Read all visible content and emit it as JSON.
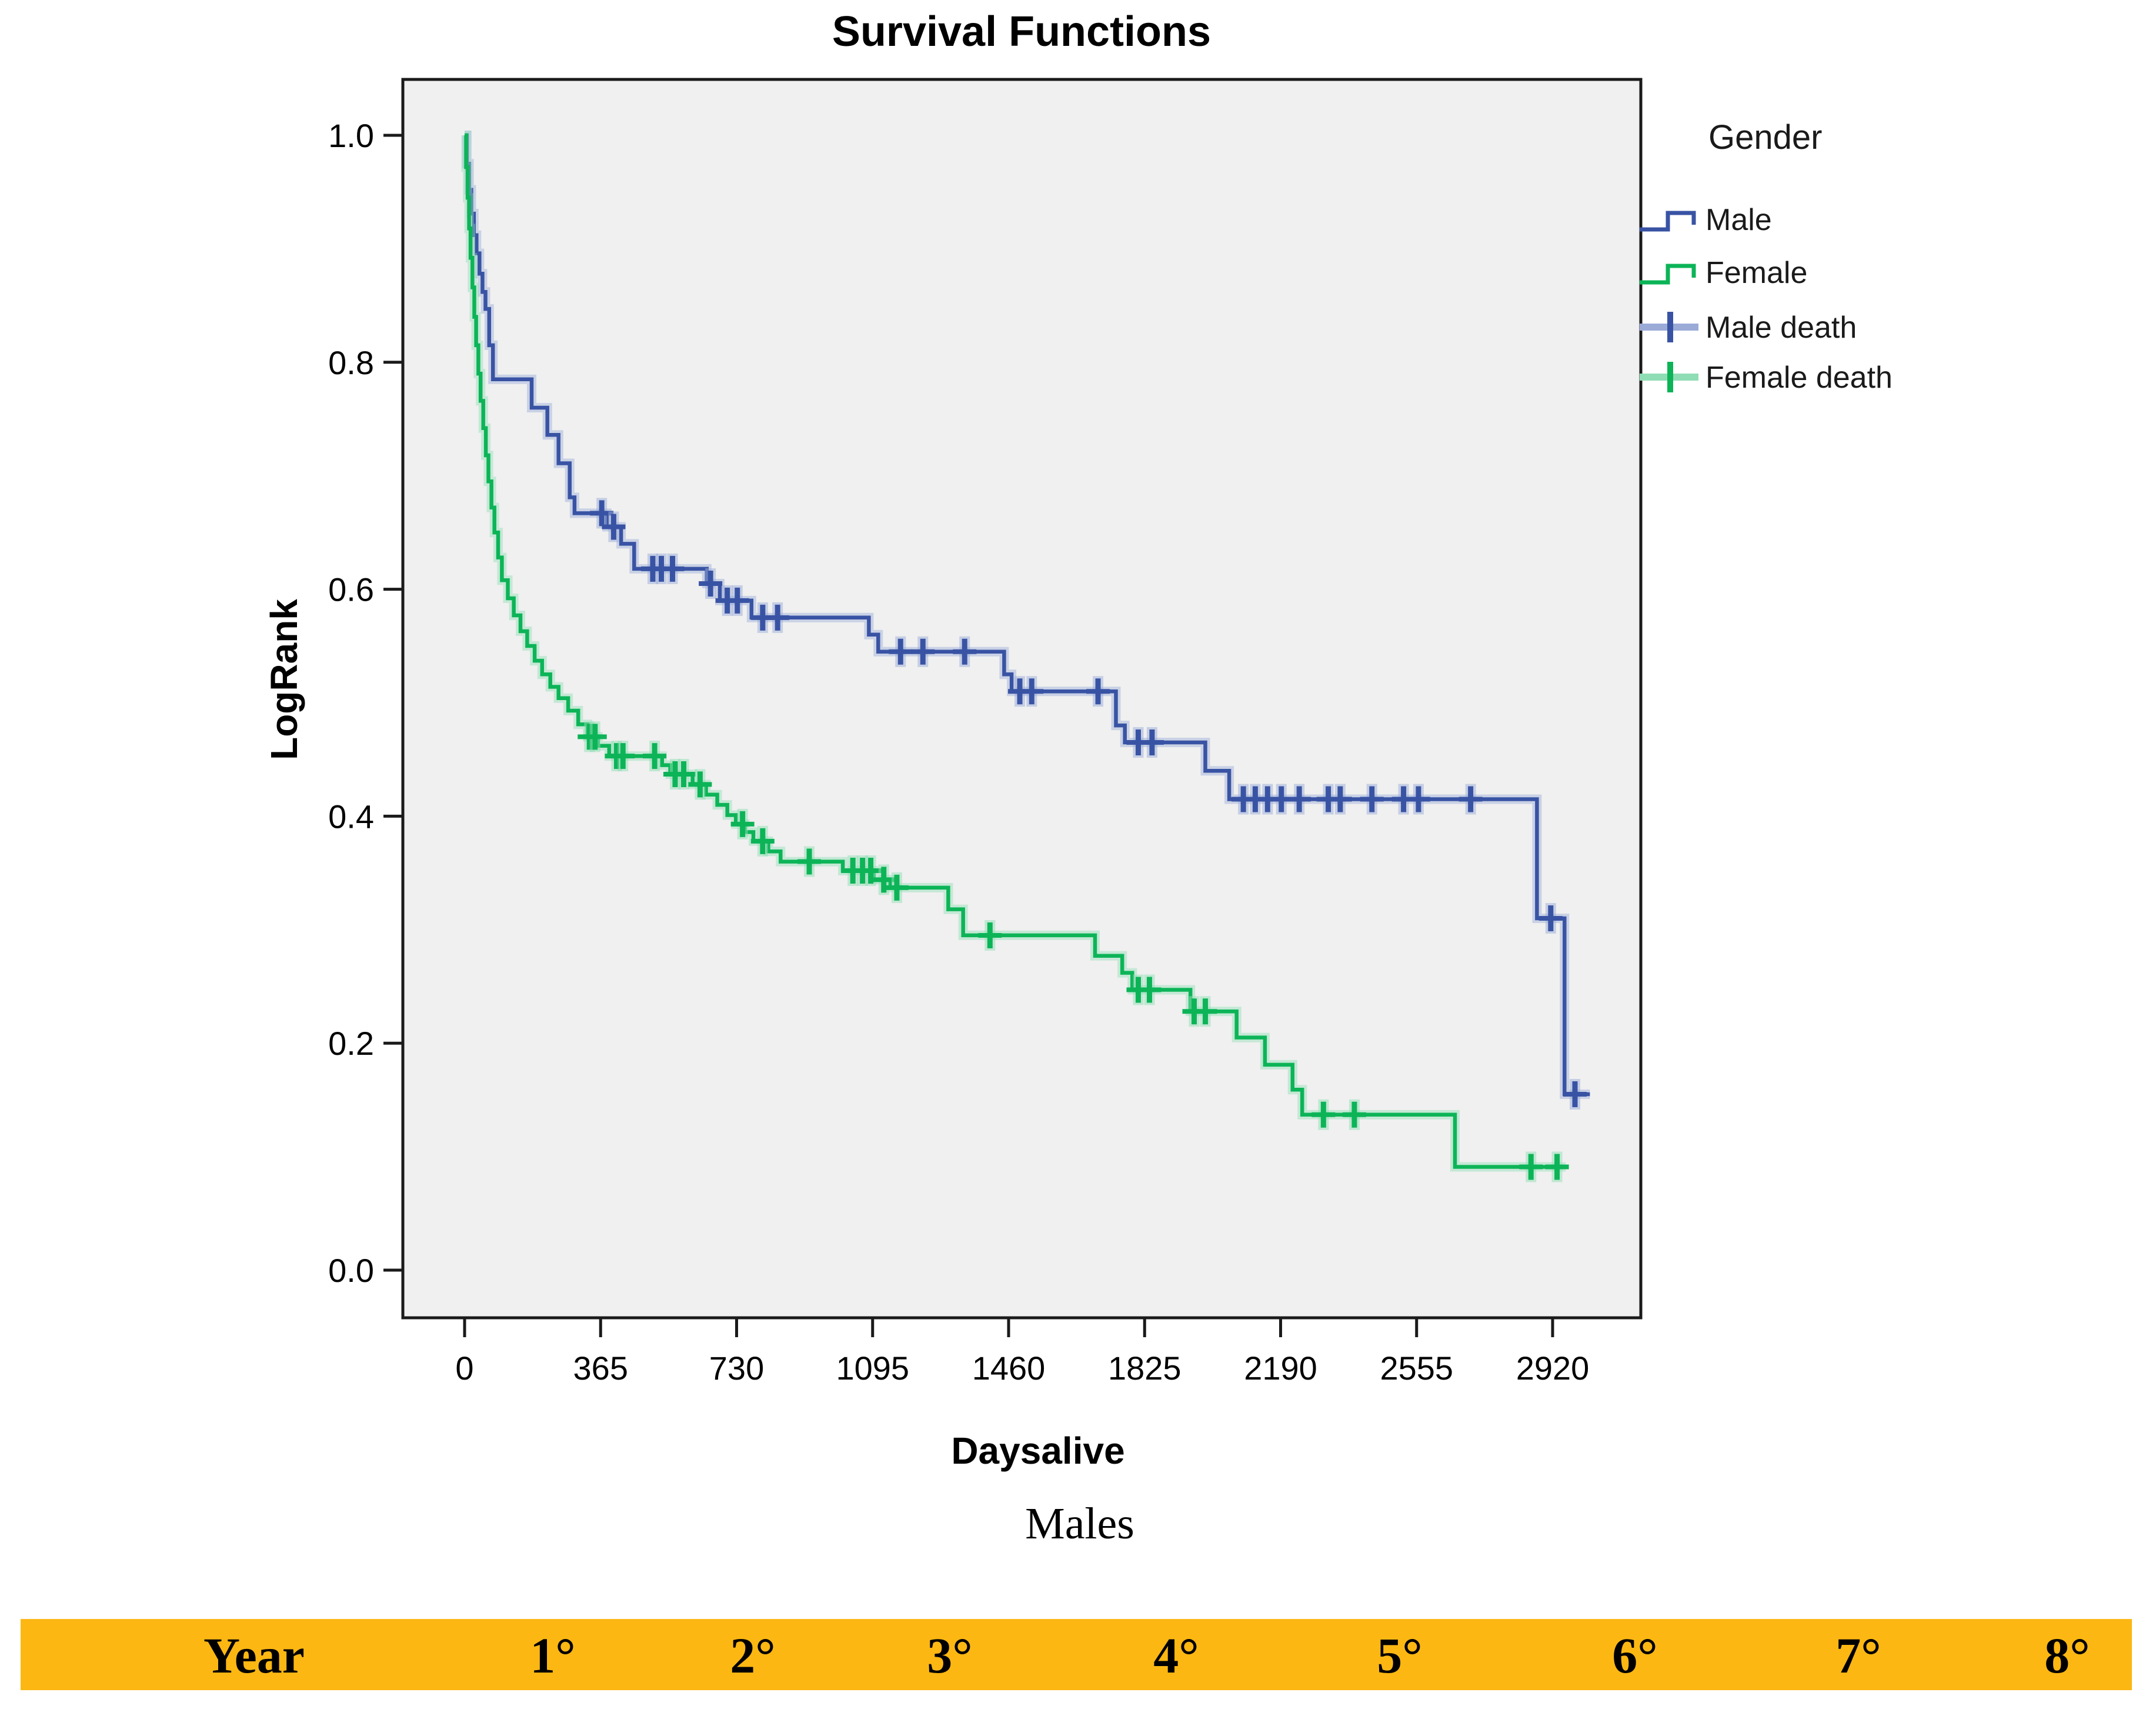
{
  "title": "Survival Functions",
  "caption": "Males",
  "y_axis": {
    "label": "LogRank",
    "ticks": [
      "1.0",
      "0.8",
      "0.6",
      "0.4",
      "0.2",
      "0.0"
    ],
    "tick_values": [
      1.0,
      0.8,
      0.6,
      0.4,
      0.2,
      0.0
    ]
  },
  "x_axis": {
    "label": "Daysalive",
    "ticks": [
      0,
      365,
      730,
      1095,
      1460,
      1825,
      2190,
      2555,
      2920
    ]
  },
  "legend": {
    "title": "Gender",
    "items": [
      {
        "label": "Male",
        "type": "step-line",
        "color_key": "male"
      },
      {
        "label": "Female",
        "type": "step-line",
        "color_key": "female"
      },
      {
        "label": "Male death",
        "type": "censor-plus",
        "color_key": "male"
      },
      {
        "label": "Female death",
        "type": "censor-plus",
        "color_key": "female"
      }
    ]
  },
  "colors": {
    "male": "#3953A4",
    "male_halo": "#9AABD8",
    "female": "#0CB457",
    "female_halo": "#8FDDB4",
    "plot_bg": "#F0F0F0",
    "frame": "#1A1A1A",
    "table_bar": "#FCB713"
  },
  "table_header": {
    "cells": [
      "Year",
      "1°",
      "2°",
      "3°",
      "4°",
      "5°",
      "6°",
      "7°",
      "8°"
    ]
  },
  "chart_data": {
    "type": "line",
    "subtype": "kaplan-meier-step",
    "title": "Survival Functions",
    "xlabel": "Daysalive",
    "ylabel": "LogRank",
    "xlim": [
      0,
      3157
    ],
    "ylim": [
      0,
      1.0
    ],
    "x_ticks": [
      0,
      365,
      730,
      1095,
      1460,
      1825,
      2190,
      2555,
      2920
    ],
    "y_ticks": [
      0.0,
      0.2,
      0.4,
      0.6,
      0.8,
      1.0
    ],
    "grid": false,
    "legend_position": "right",
    "series": [
      {
        "name": "Male",
        "color_key": "male",
        "end_day": 3020,
        "steps": [
          [
            0,
            1.0
          ],
          [
            6,
            0.975
          ],
          [
            12,
            0.952
          ],
          [
            18,
            0.931
          ],
          [
            25,
            0.912
          ],
          [
            32,
            0.896
          ],
          [
            40,
            0.878
          ],
          [
            48,
            0.862
          ],
          [
            56,
            0.847
          ],
          [
            66,
            0.815
          ],
          [
            76,
            0.785
          ],
          [
            180,
            0.76
          ],
          [
            222,
            0.736
          ],
          [
            252,
            0.711
          ],
          [
            282,
            0.681
          ],
          [
            295,
            0.667
          ],
          [
            382,
            0.655
          ],
          [
            420,
            0.64
          ],
          [
            455,
            0.618
          ],
          [
            650,
            0.605
          ],
          [
            685,
            0.59
          ],
          [
            770,
            0.575
          ],
          [
            1085,
            0.56
          ],
          [
            1110,
            0.545
          ],
          [
            1448,
            0.525
          ],
          [
            1468,
            0.51
          ],
          [
            1748,
            0.48
          ],
          [
            1772,
            0.465
          ],
          [
            1988,
            0.44
          ],
          [
            2052,
            0.415
          ],
          [
            2878,
            0.31
          ],
          [
            2952,
            0.155
          ]
        ],
        "censors": [
          [
            368,
            0.667
          ],
          [
            400,
            0.655
          ],
          [
            505,
            0.618
          ],
          [
            528,
            0.618
          ],
          [
            558,
            0.618
          ],
          [
            660,
            0.605
          ],
          [
            705,
            0.59
          ],
          [
            732,
            0.59
          ],
          [
            800,
            0.575
          ],
          [
            840,
            0.575
          ],
          [
            1170,
            0.545
          ],
          [
            1230,
            0.545
          ],
          [
            1342,
            0.545
          ],
          [
            1490,
            0.51
          ],
          [
            1522,
            0.51
          ],
          [
            1700,
            0.51
          ],
          [
            1808,
            0.465
          ],
          [
            1845,
            0.465
          ],
          [
            2090,
            0.415
          ],
          [
            2122,
            0.415
          ],
          [
            2155,
            0.415
          ],
          [
            2192,
            0.415
          ],
          [
            2240,
            0.415
          ],
          [
            2318,
            0.415
          ],
          [
            2350,
            0.415
          ],
          [
            2435,
            0.415
          ],
          [
            2520,
            0.415
          ],
          [
            2560,
            0.415
          ],
          [
            2700,
            0.415
          ],
          [
            2915,
            0.31
          ],
          [
            2980,
            0.155
          ]
        ]
      },
      {
        "name": "Female",
        "color_key": "female",
        "end_day": 2955,
        "steps": [
          [
            0,
            1.0
          ],
          [
            4,
            0.972
          ],
          [
            8,
            0.945
          ],
          [
            12,
            0.918
          ],
          [
            16,
            0.892
          ],
          [
            21,
            0.866
          ],
          [
            26,
            0.84
          ],
          [
            31,
            0.815
          ],
          [
            37,
            0.79
          ],
          [
            43,
            0.766
          ],
          [
            50,
            0.742
          ],
          [
            57,
            0.718
          ],
          [
            64,
            0.695
          ],
          [
            72,
            0.672
          ],
          [
            80,
            0.65
          ],
          [
            90,
            0.628
          ],
          [
            100,
            0.608
          ],
          [
            116,
            0.592
          ],
          [
            132,
            0.577
          ],
          [
            150,
            0.563
          ],
          [
            168,
            0.55
          ],
          [
            188,
            0.537
          ],
          [
            208,
            0.525
          ],
          [
            230,
            0.514
          ],
          [
            252,
            0.504
          ],
          [
            278,
            0.493
          ],
          [
            305,
            0.481
          ],
          [
            330,
            0.47
          ],
          [
            358,
            0.462
          ],
          [
            388,
            0.453
          ],
          [
            530,
            0.445
          ],
          [
            552,
            0.437
          ],
          [
            612,
            0.428
          ],
          [
            648,
            0.419
          ],
          [
            678,
            0.41
          ],
          [
            705,
            0.401
          ],
          [
            728,
            0.393
          ],
          [
            752,
            0.386
          ],
          [
            775,
            0.378
          ],
          [
            815,
            0.369
          ],
          [
            848,
            0.36
          ],
          [
            1015,
            0.352
          ],
          [
            1098,
            0.344
          ],
          [
            1142,
            0.337
          ],
          [
            1298,
            0.318
          ],
          [
            1338,
            0.295
          ],
          [
            1692,
            0.277
          ],
          [
            1765,
            0.262
          ],
          [
            1792,
            0.247
          ],
          [
            1948,
            0.228
          ],
          [
            2072,
            0.205
          ],
          [
            2148,
            0.181
          ],
          [
            2222,
            0.159
          ],
          [
            2248,
            0.137
          ],
          [
            2658,
            0.091
          ]
        ],
        "censors": [
          [
            335,
            0.47
          ],
          [
            350,
            0.47
          ],
          [
            408,
            0.453
          ],
          [
            425,
            0.453
          ],
          [
            510,
            0.453
          ],
          [
            565,
            0.437
          ],
          [
            588,
            0.437
          ],
          [
            632,
            0.428
          ],
          [
            746,
            0.393
          ],
          [
            800,
            0.378
          ],
          [
            925,
            0.36
          ],
          [
            1042,
            0.352
          ],
          [
            1068,
            0.352
          ],
          [
            1090,
            0.352
          ],
          [
            1125,
            0.344
          ],
          [
            1160,
            0.337
          ],
          [
            1410,
            0.295
          ],
          [
            1808,
            0.247
          ],
          [
            1838,
            0.247
          ],
          [
            1958,
            0.228
          ],
          [
            1988,
            0.228
          ],
          [
            2305,
            0.137
          ],
          [
            2388,
            0.137
          ],
          [
            2862,
            0.091
          ],
          [
            2932,
            0.091
          ]
        ]
      }
    ]
  }
}
